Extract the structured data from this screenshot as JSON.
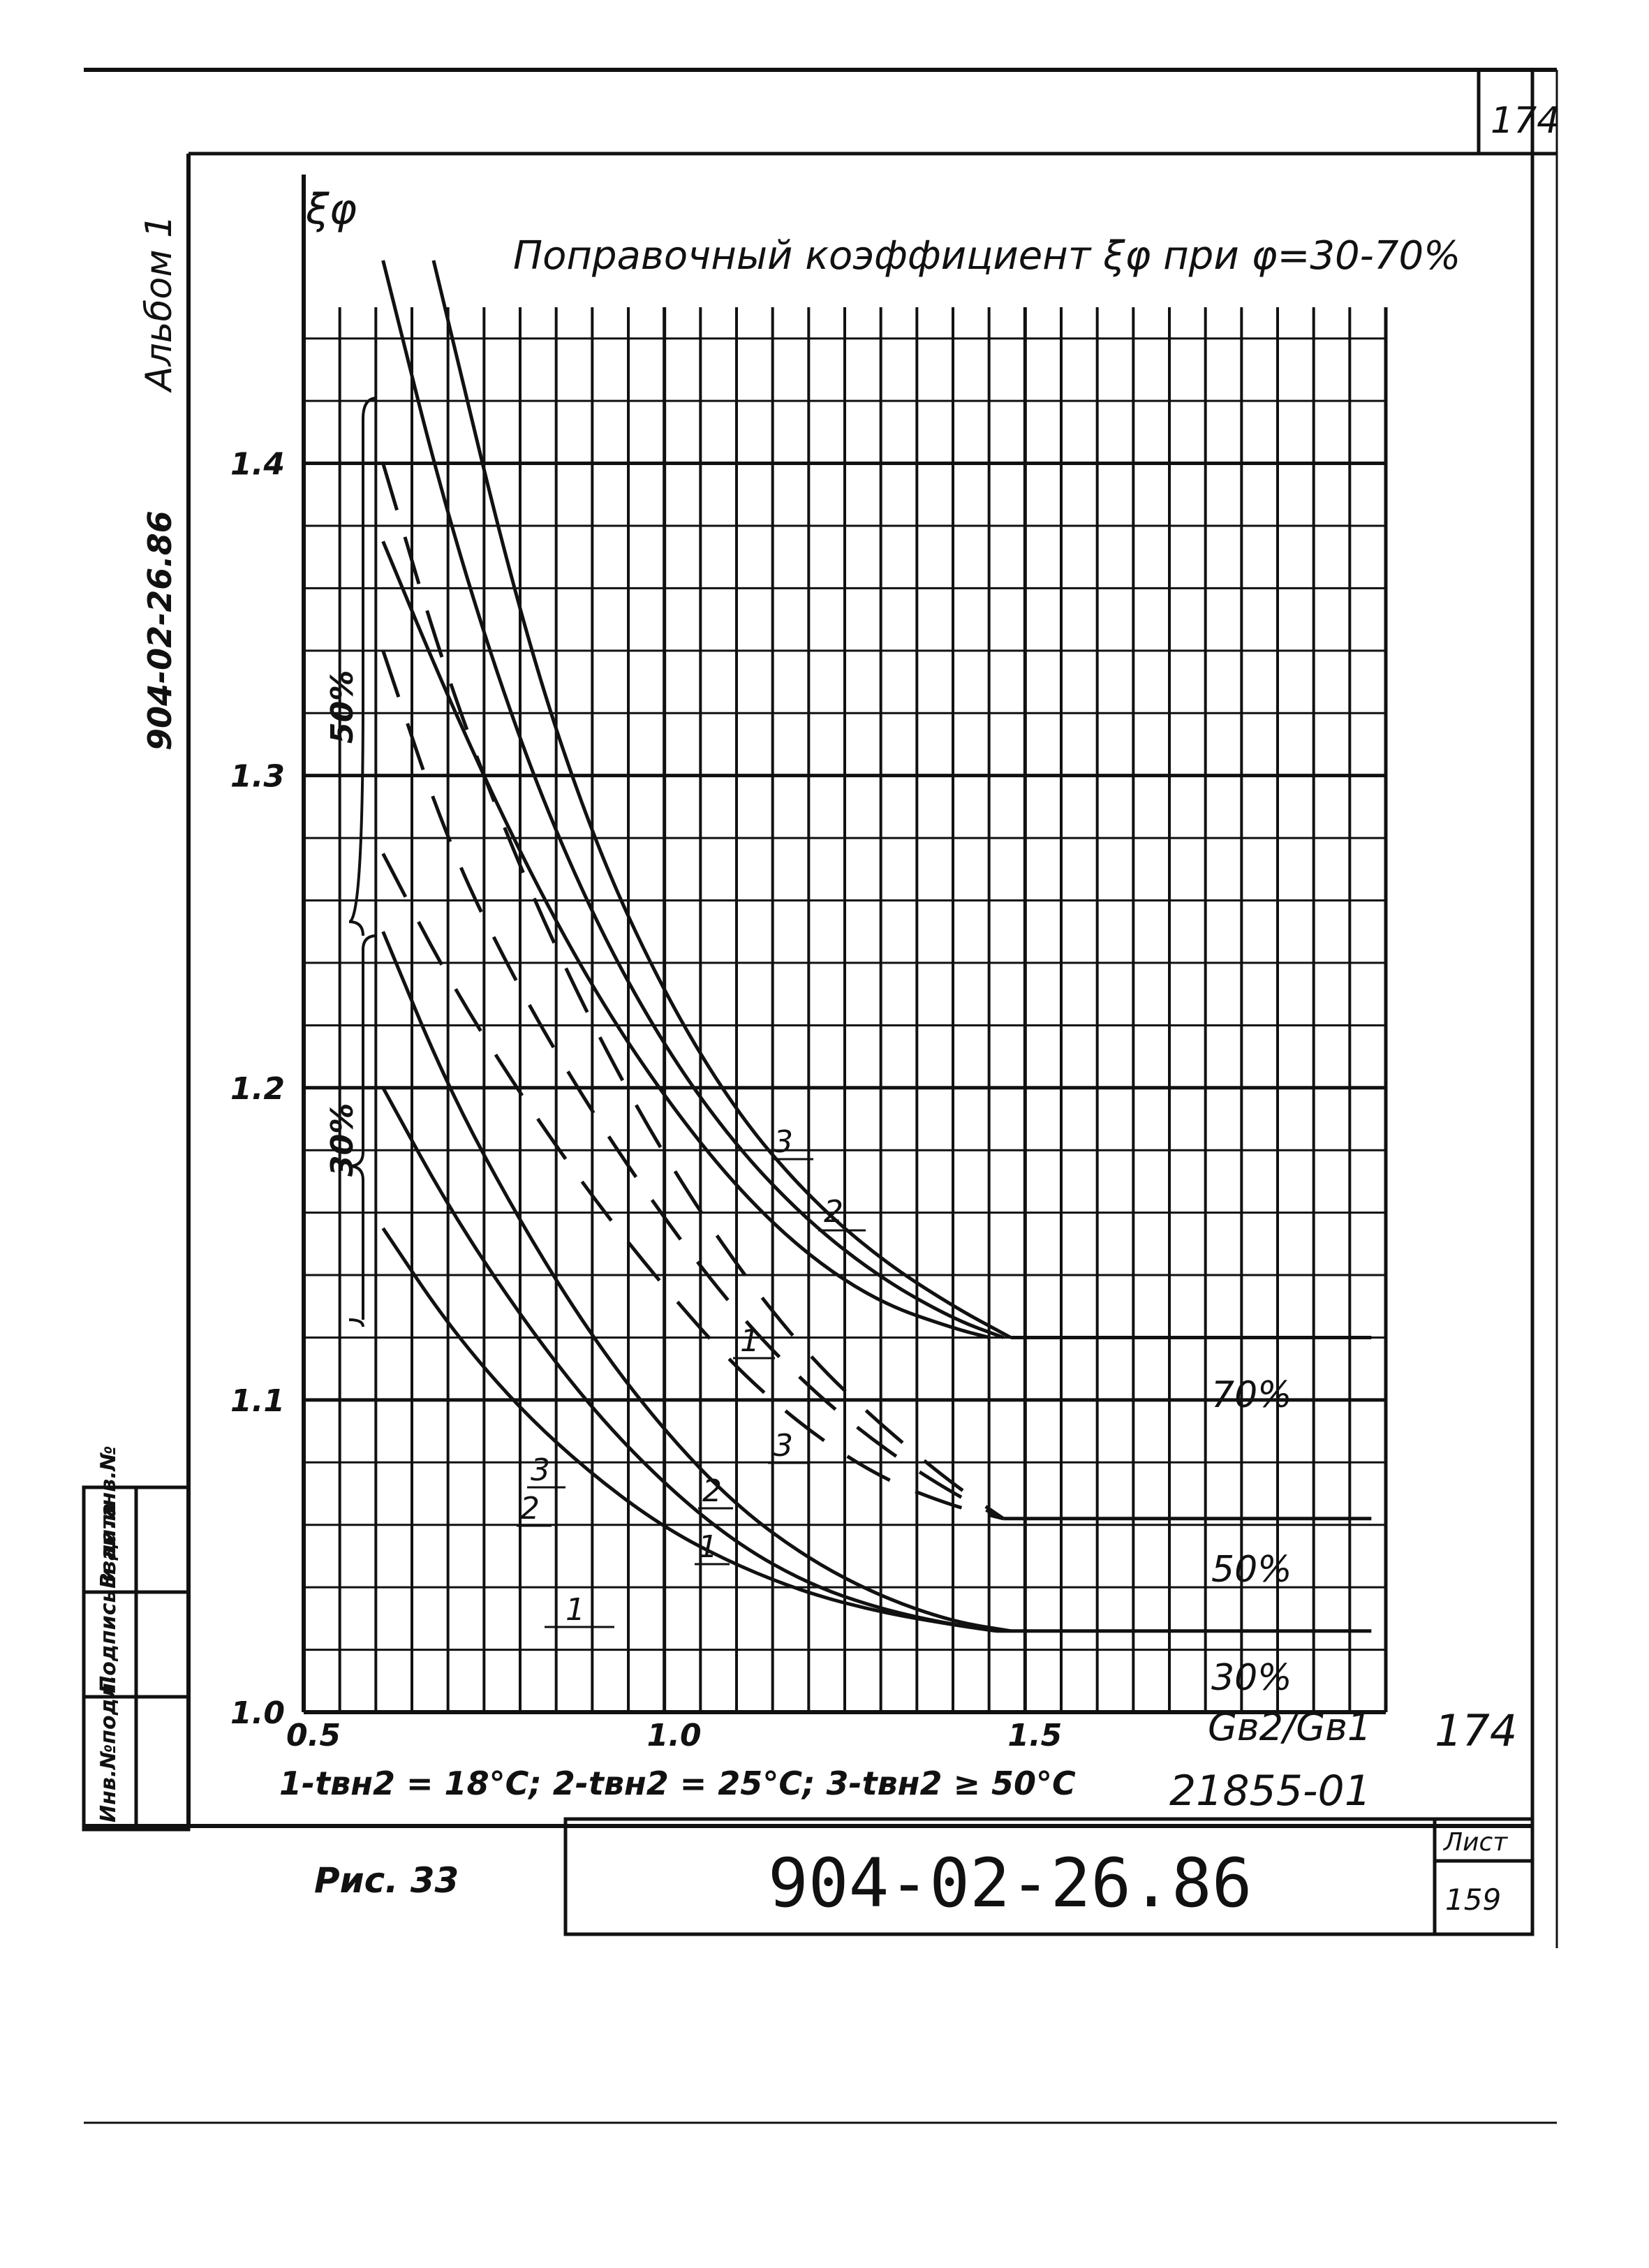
{
  "page": {
    "corner_number": "174",
    "album_side": "Альбом 1",
    "code_side": "904-02-26.86",
    "handwritten_number": "174",
    "inventory": "21855-01",
    "fig_label": "Рис. 33",
    "doc_number": "904-02-26.86",
    "sheet_label": "Лист",
    "sheet_number": "159",
    "stamp_labels": [
      "Инв.№подл.",
      "Подпись и дата",
      "Взам.инв.№"
    ]
  },
  "chart_data": {
    "type": "line",
    "title": "Поправочный коэффициент ξφ при φ=30-70%",
    "ylabel": "ξφ",
    "xlabel": "Gв2/Gв1",
    "xlim": [
      0.5,
      1.5
    ],
    "ylim": [
      1.0,
      1.45
    ],
    "x_ticks": [
      "0.5",
      "1.0",
      "1.5"
    ],
    "y_ticks": [
      "1.0",
      "1.1",
      "1.2",
      "1.3",
      "1.4"
    ],
    "grid": true,
    "legend": "1-tвн2 = 18°С;  2-tвн2 = 25°С;  3-tвн2 ≥ 50°С",
    "curve_labels": [
      "1",
      "2",
      "3"
    ],
    "group_labels": [
      "70%",
      "50%",
      "30%"
    ],
    "bracket_labels": [
      "50%",
      "30%"
    ],
    "series": [
      {
        "group": "70%",
        "curve": "1",
        "style": "solid",
        "x": [
          0.61,
          0.7,
          0.8,
          0.9,
          1.0,
          1.1,
          1.2,
          1.3,
          1.4,
          1.45
        ],
        "y": [
          1.375,
          1.325,
          1.275,
          1.232,
          1.197,
          1.168,
          1.146,
          1.131,
          1.123,
          1.12
        ]
      },
      {
        "group": "70%",
        "curve": "2",
        "style": "solid",
        "x": [
          0.61,
          0.7,
          0.8,
          0.9,
          1.0,
          1.1,
          1.2,
          1.3,
          1.4,
          1.47
        ],
        "y": [
          1.465,
          1.382,
          1.31,
          1.255,
          1.213,
          1.181,
          1.157,
          1.139,
          1.126,
          1.12
        ]
      },
      {
        "group": "70%",
        "curve": "3",
        "style": "solid",
        "x": [
          0.68,
          0.8,
          0.9,
          1.0,
          1.1,
          1.2,
          1.3,
          1.4,
          1.48
        ],
        "y": [
          1.465,
          1.35,
          1.28,
          1.23,
          1.192,
          1.165,
          1.145,
          1.13,
          1.12
        ]
      },
      {
        "group": "50%",
        "curve": "1",
        "style": "dashed",
        "x": [
          0.61,
          0.7,
          0.8,
          0.9,
          1.0,
          1.1,
          1.2,
          1.3,
          1.4,
          1.47
        ],
        "y": [
          1.275,
          1.235,
          1.198,
          1.165,
          1.136,
          1.11,
          1.09,
          1.075,
          1.066,
          1.062
        ]
      },
      {
        "group": "50%",
        "curve": "2",
        "style": "dashed",
        "x": [
          0.61,
          0.7,
          0.8,
          0.9,
          1.0,
          1.1,
          1.2,
          1.3,
          1.4,
          1.47
        ],
        "y": [
          1.34,
          1.278,
          1.231,
          1.192,
          1.158,
          1.128,
          1.104,
          1.085,
          1.07,
          1.062
        ]
      },
      {
        "group": "50%",
        "curve": "3",
        "style": "dashed",
        "x": [
          0.61,
          0.7,
          0.8,
          0.9,
          1.0,
          1.1,
          1.2,
          1.3,
          1.4,
          1.47
        ],
        "y": [
          1.4,
          1.33,
          1.27,
          1.22,
          1.178,
          1.143,
          1.114,
          1.092,
          1.073,
          1.062
        ]
      },
      {
        "group": "30%",
        "curve": "1",
        "style": "solid",
        "x": [
          0.61,
          0.7,
          0.8,
          0.9,
          1.0,
          1.1,
          1.2,
          1.3,
          1.4,
          1.46
        ],
        "y": [
          1.155,
          1.124,
          1.097,
          1.076,
          1.059,
          1.047,
          1.038,
          1.032,
          1.028,
          1.026
        ]
      },
      {
        "group": "30%",
        "curve": "2",
        "style": "solid",
        "x": [
          0.61,
          0.7,
          0.8,
          0.9,
          1.0,
          1.1,
          1.2,
          1.3,
          1.4,
          1.47
        ],
        "y": [
          1.2,
          1.162,
          1.127,
          1.097,
          1.073,
          1.054,
          1.041,
          1.033,
          1.028,
          1.026
        ]
      },
      {
        "group": "30%",
        "curve": "3",
        "style": "solid",
        "x": [
          0.61,
          0.7,
          0.8,
          0.9,
          1.0,
          1.1,
          1.2,
          1.3,
          1.4,
          1.48
        ],
        "y": [
          1.25,
          1.2,
          1.157,
          1.12,
          1.09,
          1.066,
          1.049,
          1.037,
          1.029,
          1.026
        ]
      },
      {
        "group": "70%",
        "curve": "plateau",
        "style": "solid",
        "x": [
          1.48,
          1.98
        ],
        "y": [
          1.12,
          1.12
        ]
      },
      {
        "group": "50%",
        "curve": "plateau",
        "style": "solid",
        "x": [
          1.47,
          1.98
        ],
        "y": [
          1.062,
          1.062
        ]
      },
      {
        "group": "30%",
        "curve": "plateau",
        "style": "solid",
        "x": [
          1.46,
          1.98
        ],
        "y": [
          1.026,
          1.026
        ]
      }
    ]
  }
}
